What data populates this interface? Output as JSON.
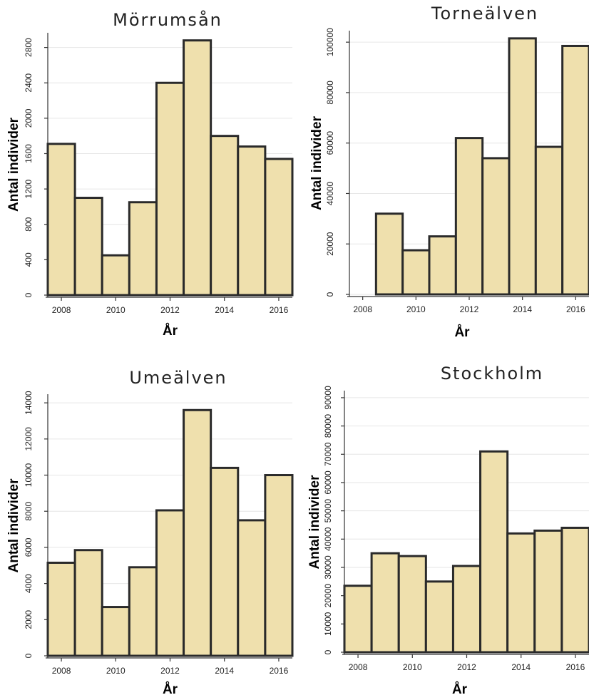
{
  "chart_data": [
    {
      "type": "bar",
      "title": "Mörrumsån",
      "xlabel": "År",
      "ylabel": "Antal individer",
      "x": [
        2008,
        2009,
        2010,
        2011,
        2012,
        2013,
        2014,
        2015,
        2016
      ],
      "values": [
        1710,
        1100,
        450,
        1050,
        2400,
        2880,
        1800,
        1680,
        1540
      ],
      "xticks": [
        2008,
        2010,
        2012,
        2014,
        2016
      ],
      "yticks": [
        0,
        400,
        800,
        1200,
        1600,
        2000,
        2400,
        2800
      ],
      "ylim": [
        0,
        2950
      ],
      "xlim": [
        2007.5,
        2016.5
      ],
      "grid": true
    },
    {
      "type": "bar",
      "title": "Torneälven",
      "xlabel": "År",
      "ylabel": "Antal individer",
      "x": [
        2009,
        2010,
        2011,
        2012,
        2013,
        2014,
        2015,
        2016
      ],
      "values": [
        32000,
        17500,
        23000,
        62000,
        54000,
        101500,
        58500,
        98500
      ],
      "xticks": [
        2008,
        2010,
        2012,
        2014,
        2016
      ],
      "yticks": [
        0,
        20000,
        40000,
        60000,
        80000,
        100000
      ],
      "ylim": [
        0,
        104000
      ],
      "xlim": [
        2007.5,
        2016.5
      ],
      "grid": true
    },
    {
      "type": "bar",
      "title": "Umeälven",
      "xlabel": "År",
      "ylabel": "Antal individer",
      "x": [
        2008,
        2009,
        2010,
        2011,
        2012,
        2013,
        2014,
        2015,
        2016
      ],
      "values": [
        5150,
        5850,
        2700,
        4900,
        8050,
        13600,
        10400,
        7500,
        10000
      ],
      "xticks": [
        2008,
        2010,
        2012,
        2014,
        2016
      ],
      "yticks": [
        0,
        2000,
        4000,
        6000,
        8000,
        10000,
        12000,
        14000
      ],
      "ylim": [
        0,
        14400
      ],
      "xlim": [
        2007.5,
        2016.5
      ],
      "grid": true
    },
    {
      "type": "bar",
      "title": "Stockholm",
      "xlabel": "År",
      "ylabel": "Antal individer",
      "x": [
        2008,
        2009,
        2010,
        2011,
        2012,
        2013,
        2014,
        2015,
        2016
      ],
      "values": [
        23500,
        35000,
        34000,
        25000,
        30500,
        71000,
        42000,
        43000,
        44000
      ],
      "xticks": [
        2008,
        2010,
        2012,
        2014,
        2016
      ],
      "yticks": [
        0,
        10000,
        20000,
        30000,
        40000,
        50000,
        60000,
        70000,
        80000,
        90000
      ],
      "ylim": [
        0,
        92000
      ],
      "xlim": [
        2007.5,
        2016.5
      ],
      "grid": true
    }
  ]
}
